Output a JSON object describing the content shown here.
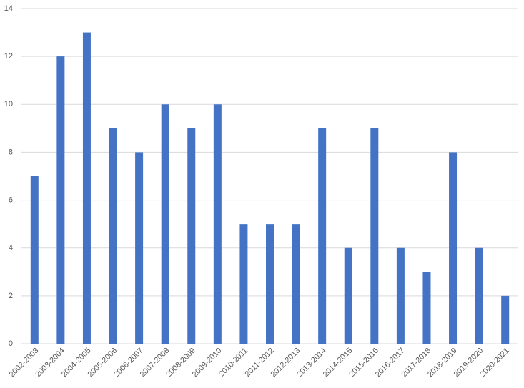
{
  "chart_data": {
    "type": "bar",
    "categories": [
      "2002-2003",
      "2003-2004",
      "2004-2005",
      "2005-2006",
      "2006-2007",
      "2007-2008",
      "2008-2009",
      "2009-2010",
      "2010-2011",
      "2011-2012",
      "2012-2013",
      "2013-2014",
      "2014-2015",
      "2015-2016",
      "2016-2017",
      "2017-2018",
      "2018-2019",
      "2019-2020",
      "2020-2021"
    ],
    "values": [
      7,
      12,
      13,
      9,
      8,
      10,
      9,
      10,
      5,
      5,
      5,
      9,
      4,
      9,
      4,
      3,
      8,
      4,
      2
    ],
    "color": "#4472c4",
    "ylim": [
      0,
      14
    ],
    "yticks": [
      0,
      2,
      4,
      6,
      8,
      10,
      12,
      14
    ],
    "grid": true
  }
}
